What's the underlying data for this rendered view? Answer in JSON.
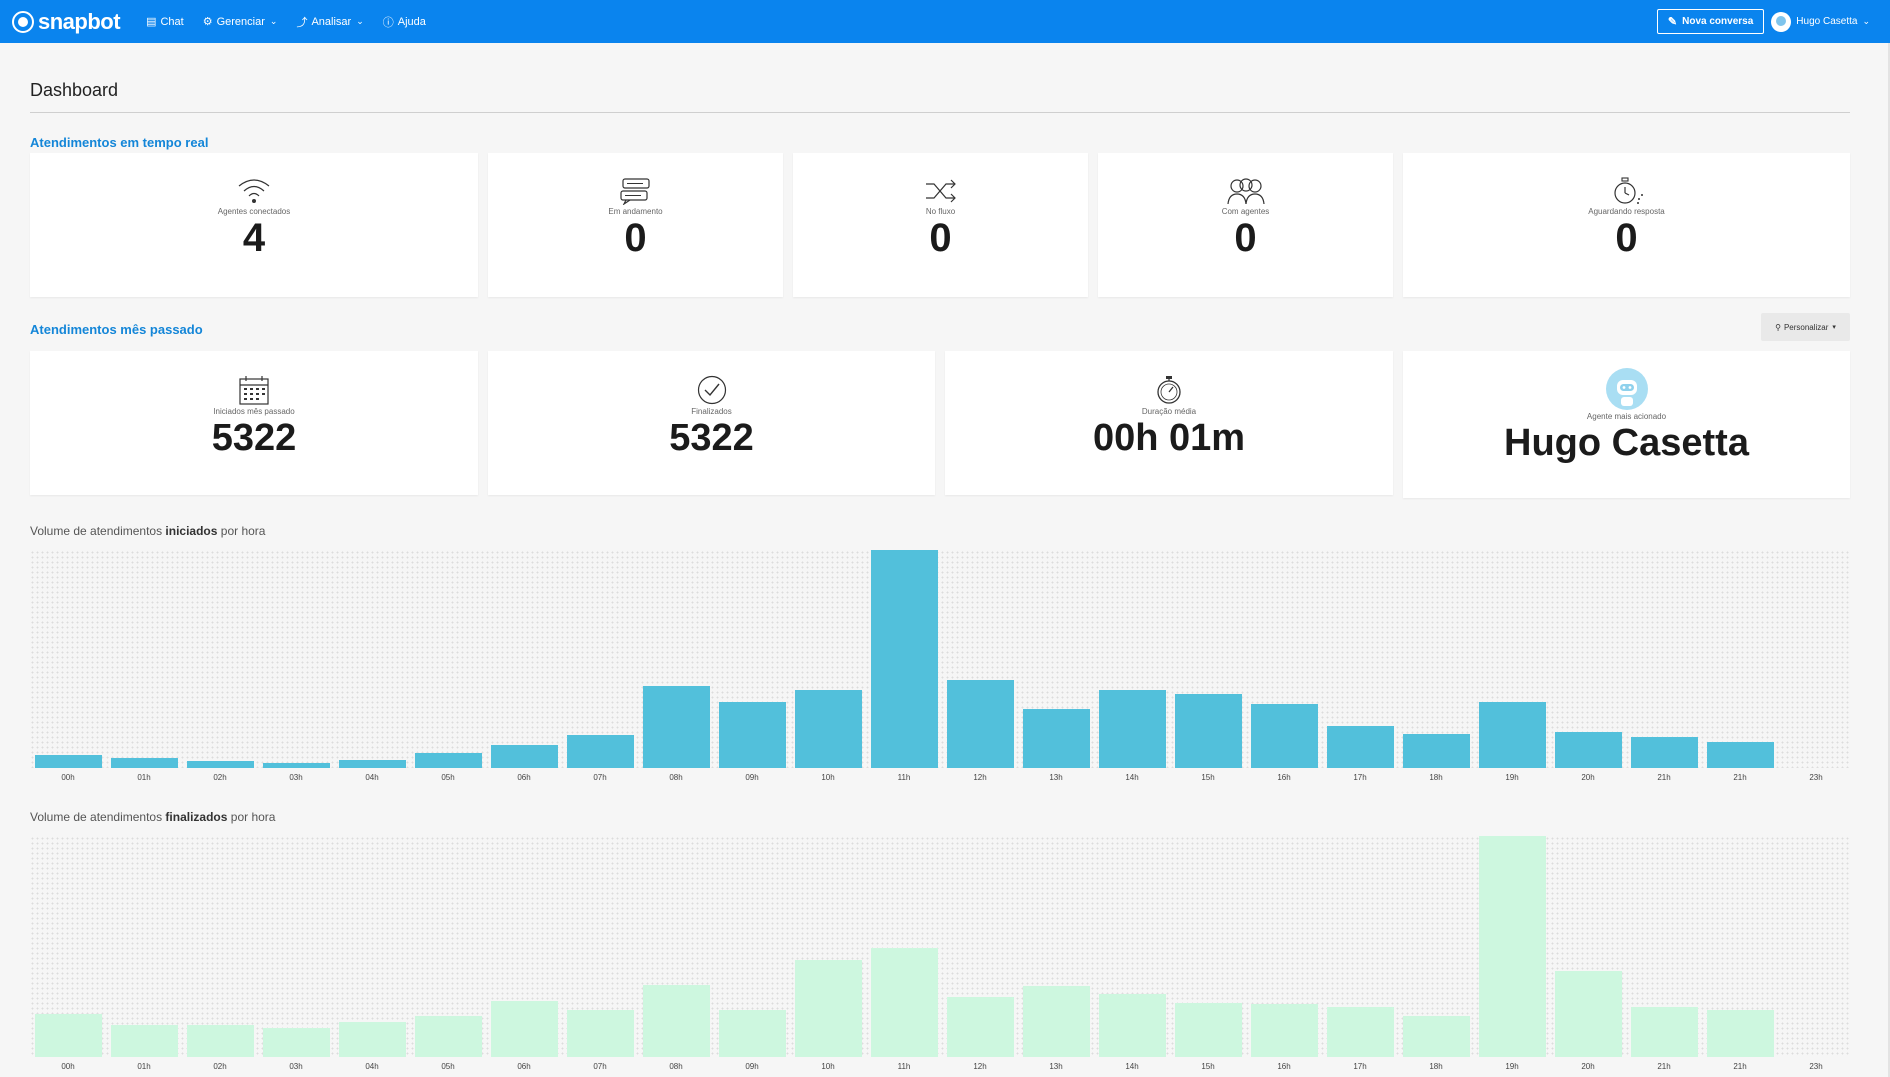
{
  "nav": {
    "brand": "snapbot",
    "items": [
      {
        "label": "Chat",
        "icon": "chat-icon",
        "dropdown": false
      },
      {
        "label": "Gerenciar",
        "icon": "gear-icon",
        "dropdown": true
      },
      {
        "label": "Analisar",
        "icon": "analytics-icon",
        "dropdown": true
      },
      {
        "label": "Ajuda",
        "icon": "help-icon",
        "dropdown": false
      }
    ],
    "new_conversation": "Nova conversa",
    "user_name": "Hugo Casetta"
  },
  "page": {
    "title": "Dashboard"
  },
  "realtime": {
    "section_label": "Atendimentos em tempo real",
    "cards": [
      {
        "label": "Agentes conectados",
        "value": "4",
        "icon": "wifi-icon"
      },
      {
        "label": "Em andamento",
        "value": "0",
        "icon": "chat-bubbles-icon"
      },
      {
        "label": "No fluxo",
        "value": "0",
        "icon": "shuffle-icon"
      },
      {
        "label": "Com agentes",
        "value": "0",
        "icon": "people-icon"
      },
      {
        "label": "Aguardando resposta",
        "value": "0",
        "icon": "stopwatch-icon"
      }
    ]
  },
  "last_month": {
    "section_label": "Atendimentos mês passado",
    "customize_label": "Personalizar",
    "cards": [
      {
        "label": "Iniciados mês passado",
        "value": "5322",
        "icon": "calendar-icon"
      },
      {
        "label": "Finalizados",
        "value": "5322",
        "icon": "check-circle-icon"
      },
      {
        "label": "Duração média",
        "value": "00h 01m",
        "icon": "timer-icon"
      },
      {
        "label": "Agente mais acionado",
        "value": "Hugo Casetta",
        "icon": "robot-avatar-icon"
      }
    ]
  },
  "colors": {
    "topbar": "#0a84ee",
    "section_label": "#1486d8",
    "started_bars": "#52c0db",
    "finished_bars": "#cdf7df"
  },
  "chart_data": [
    {
      "type": "bar",
      "title_pre": "Volume de atendimentos ",
      "title_bold": "iniciados",
      "title_post": " por hora",
      "categories": [
        "00h",
        "01h",
        "02h",
        "03h",
        "04h",
        "05h",
        "06h",
        "07h",
        "08h",
        "09h",
        "10h",
        "11h",
        "12h",
        "13h",
        "14h",
        "15h",
        "16h",
        "17h",
        "18h",
        "19h",
        "20h",
        "21h",
        "21h",
        "23h"
      ],
      "values": [
        6,
        4.5,
        3,
        2.5,
        3.5,
        7,
        10.5,
        15,
        37.5,
        30.5,
        36,
        100,
        40.5,
        27,
        36,
        34,
        29.5,
        19.5,
        15.5,
        30.5,
        16.5,
        14,
        12,
        0
      ],
      "ylim": [
        0,
        100
      ],
      "grid": true,
      "color": "#52c0db"
    },
    {
      "type": "bar",
      "title_pre": "Volume de atendimentos ",
      "title_bold": "finalizados",
      "title_post": " por hora",
      "categories": [
        "00h",
        "01h",
        "02h",
        "03h",
        "04h",
        "05h",
        "06h",
        "07h",
        "08h",
        "09h",
        "10h",
        "11h",
        "12h",
        "13h",
        "14h",
        "15h",
        "16h",
        "17h",
        "18h",
        "19h",
        "20h",
        "21h",
        "21h",
        "23h"
      ],
      "values": [
        19.5,
        14.5,
        14.5,
        13,
        16,
        18.5,
        25.5,
        21.5,
        32.5,
        21.5,
        44,
        49.5,
        27,
        32,
        28.5,
        24.5,
        24,
        22.5,
        18.5,
        100,
        39,
        22.5,
        21.5,
        0
      ],
      "ylim": [
        0,
        100
      ],
      "grid": true,
      "color": "#cdf7df"
    }
  ]
}
